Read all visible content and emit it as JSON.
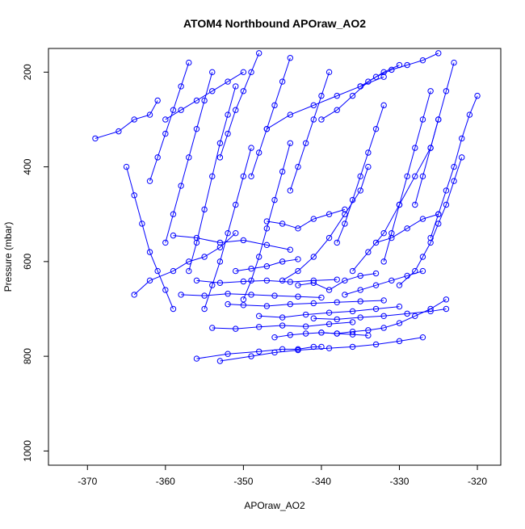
{
  "chart_data": {
    "type": "scatter",
    "title": "ATOM4 Northbound APOraw_AO2",
    "xlabel": "APOraw_AO2",
    "ylabel": "Pressure (mbar)",
    "xlim": [
      -375,
      -317
    ],
    "ylim": [
      1030,
      150
    ],
    "y_reversed": true,
    "xticks": [
      -370,
      -360,
      -350,
      -340,
      -330,
      -320
    ],
    "yticks": [
      200,
      400,
      600,
      800,
      1000
    ],
    "grid": false,
    "legend": "none",
    "marker": "open-circle",
    "color": "#0000ff",
    "series": [
      {
        "x": [
          -369,
          -366,
          -364,
          -362,
          -361
        ],
        "y": [
          340,
          325,
          300,
          290,
          260
        ]
      },
      {
        "x": [
          -365,
          -364,
          -363,
          -362,
          -361,
          -360,
          -359
        ],
        "y": [
          400,
          460,
          520,
          580,
          620,
          660,
          700
        ]
      },
      {
        "x": [
          -364,
          -362,
          -359,
          -357,
          -355,
          -353,
          -351
        ],
        "y": [
          670,
          640,
          620,
          600,
          590,
          570,
          540
        ]
      },
      {
        "x": [
          -356,
          -352,
          -348,
          -345,
          -343,
          -341,
          -340
        ],
        "y": [
          805,
          795,
          790,
          785,
          785,
          780,
          780
        ]
      },
      {
        "x": [
          -353,
          -349,
          -346,
          -343,
          -339,
          -336,
          -333,
          -330,
          -327
        ],
        "y": [
          810,
          800,
          792,
          787,
          783,
          780,
          775,
          768,
          760
        ]
      },
      {
        "x": [
          -340,
          -338,
          -336,
          -334,
          -332,
          -330,
          -328,
          -326,
          -324
        ],
        "y": [
          750,
          752,
          748,
          745,
          740,
          730,
          715,
          700,
          680
        ]
      },
      {
        "x": [
          -330,
          -328,
          -327,
          -326,
          -325,
          -324,
          -323,
          -322
        ],
        "y": [
          650,
          620,
          590,
          560,
          520,
          480,
          430,
          380
        ]
      },
      {
        "x": [
          -326,
          -325,
          -324,
          -323,
          -322,
          -321,
          -320
        ],
        "y": [
          550,
          500,
          450,
          400,
          340,
          290,
          250
        ]
      },
      {
        "x": [
          -336,
          -334,
          -332,
          -330,
          -328,
          -326,
          -325
        ],
        "y": [
          620,
          580,
          540,
          480,
          420,
          360,
          300
        ]
      },
      {
        "x": [
          -345,
          -343,
          -341,
          -339,
          -337,
          -335,
          -334
        ],
        "y": [
          640,
          620,
          590,
          550,
          500,
          450,
          400
        ]
      },
      {
        "x": [
          -350,
          -349,
          -348,
          -347,
          -346,
          -345,
          -344
        ],
        "y": [
          680,
          640,
          590,
          530,
          470,
          410,
          350
        ]
      },
      {
        "x": [
          -355,
          -354,
          -353,
          -352,
          -351,
          -350,
          -349
        ],
        "y": [
          700,
          650,
          600,
          540,
          480,
          420,
          360
        ]
      },
      {
        "x": [
          -357,
          -356,
          -355,
          -354,
          -353,
          -352,
          -351
        ],
        "y": [
          620,
          560,
          490,
          420,
          350,
          290,
          230
        ]
      },
      {
        "x": [
          -360,
          -359,
          -358,
          -357,
          -356,
          -355,
          -354
        ],
        "y": [
          560,
          500,
          440,
          380,
          320,
          260,
          200
        ]
      },
      {
        "x": [
          -362,
          -361,
          -360,
          -359,
          -358,
          -357
        ],
        "y": [
          430,
          380,
          330,
          280,
          230,
          180
        ]
      },
      {
        "x": [
          -358,
          -355,
          -352,
          -349,
          -346,
          -343,
          -340
        ],
        "y": [
          670,
          672,
          668,
          670,
          672,
          674,
          676
        ]
      },
      {
        "x": [
          -356,
          -353,
          -350,
          -347,
          -344,
          -341,
          -338
        ],
        "y": [
          640,
          645,
          642,
          640,
          643,
          640,
          638
        ]
      },
      {
        "x": [
          -354,
          -351,
          -348,
          -345,
          -342,
          -339,
          -336
        ],
        "y": [
          740,
          742,
          738,
          735,
          737,
          732,
          728
        ]
      },
      {
        "x": [
          -348,
          -345,
          -342,
          -339,
          -336,
          -333,
          -330
        ],
        "y": [
          715,
          718,
          712,
          708,
          705,
          700,
          695
        ]
      },
      {
        "x": [
          -352,
          -350,
          -347,
          -344,
          -341,
          -338,
          -335,
          -332
        ],
        "y": [
          690,
          692,
          694,
          690,
          688,
          686,
          684,
          682
        ]
      },
      {
        "x": [
          -341,
          -338,
          -335,
          -332,
          -329,
          -326,
          -324
        ],
        "y": [
          720,
          722,
          718,
          715,
          710,
          705,
          700
        ]
      },
      {
        "x": [
          -346,
          -344,
          -342,
          -340,
          -338,
          -336,
          -334
        ],
        "y": [
          760,
          755,
          752,
          750,
          752,
          754,
          756
        ]
      },
      {
        "x": [
          -338,
          -337,
          -336,
          -335,
          -334,
          -333,
          -332
        ],
        "y": [
          560,
          520,
          470,
          420,
          370,
          320,
          270
        ]
      },
      {
        "x": [
          -332,
          -331,
          -330,
          -329,
          -328,
          -327,
          -326
        ],
        "y": [
          600,
          540,
          480,
          420,
          360,
          300,
          240
        ]
      },
      {
        "x": [
          -328,
          -327,
          -326,
          -325,
          -324,
          -323
        ],
        "y": [
          480,
          420,
          360,
          300,
          240,
          180
        ]
      },
      {
        "x": [
          -344,
          -343,
          -342,
          -341,
          -340,
          -339
        ],
        "y": [
          450,
          400,
          350,
          300,
          250,
          200
        ]
      },
      {
        "x": [
          -349,
          -348,
          -347,
          -346,
          -345,
          -344
        ],
        "y": [
          420,
          370,
          320,
          270,
          220,
          170
        ]
      },
      {
        "x": [
          -353,
          -352,
          -351,
          -350,
          -349,
          -348
        ],
        "y": [
          380,
          330,
          280,
          240,
          200,
          160
        ]
      },
      {
        "x": [
          -335,
          -333,
          -331,
          -329,
          -327,
          -325
        ],
        "y": [
          230,
          210,
          195,
          185,
          175,
          160
        ]
      },
      {
        "x": [
          -340,
          -338,
          -336,
          -334,
          -332,
          -330
        ],
        "y": [
          300,
          280,
          250,
          220,
          200,
          185
        ]
      },
      {
        "x": [
          -347,
          -344,
          -341,
          -338,
          -335,
          -332
        ],
        "y": [
          320,
          290,
          270,
          250,
          230,
          210
        ]
      },
      {
        "x": [
          -360,
          -358,
          -356,
          -354,
          -352,
          -350
        ],
        "y": [
          300,
          280,
          260,
          240,
          220,
          200
        ]
      },
      {
        "x": [
          -343,
          -341,
          -339,
          -337,
          -335,
          -333
        ],
        "y": [
          650,
          645,
          660,
          640,
          630,
          625
        ]
      },
      {
        "x": [
          -337,
          -335,
          -333,
          -331,
          -329,
          -327
        ],
        "y": [
          670,
          660,
          650,
          640,
          630,
          620
        ]
      },
      {
        "x": [
          -359,
          -356,
          -353,
          -350,
          -347,
          -344
        ],
        "y": [
          545,
          550,
          560,
          555,
          565,
          575
        ]
      },
      {
        "x": [
          -347,
          -345,
          -343,
          -341,
          -339,
          -337
        ],
        "y": [
          515,
          520,
          530,
          510,
          500,
          490
        ]
      },
      {
        "x": [
          -333,
          -331,
          -329,
          -327,
          -325
        ],
        "y": [
          560,
          550,
          530,
          510,
          500
        ]
      },
      {
        "x": [
          -351,
          -349,
          -347,
          -345,
          -343
        ],
        "y": [
          620,
          615,
          610,
          600,
          595
        ]
      }
    ]
  }
}
